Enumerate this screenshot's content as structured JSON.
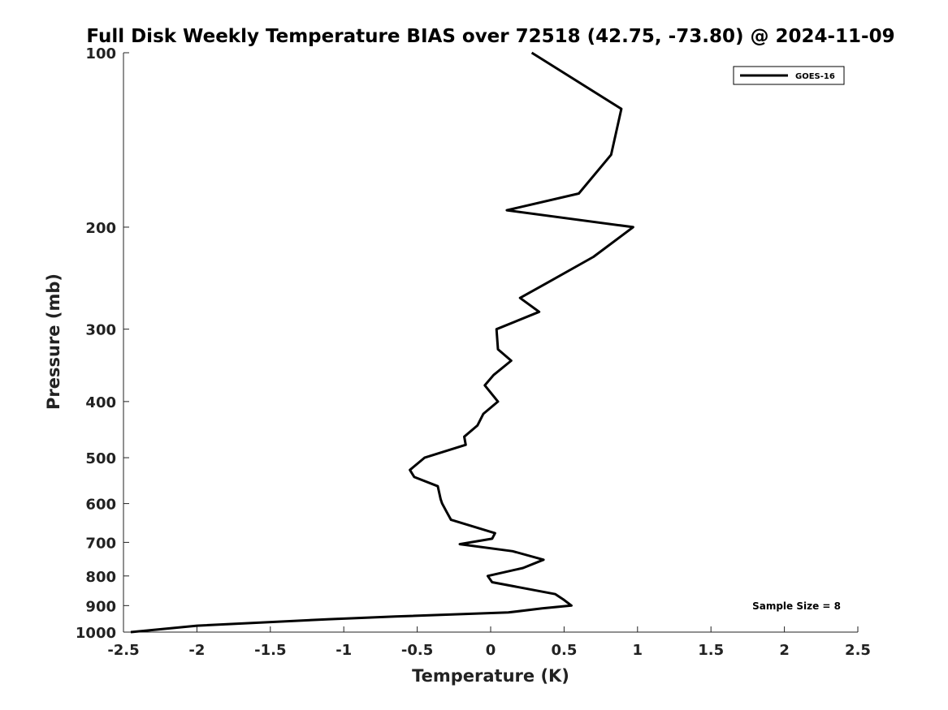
{
  "chart_data": {
    "type": "line",
    "title": "Full Disk Weekly Temperature BIAS over 72518 (42.75, -73.80) @ 2024-11-09",
    "xlabel": "Temperature (K)",
    "ylabel": "Pressure (mb)",
    "xlim": [
      -2.5,
      2.5
    ],
    "ylim": [
      1000,
      100
    ],
    "yscale": "log",
    "y_reversed": true,
    "grid": false,
    "legend_placement": "top-right",
    "x_ticks": [
      -2.5,
      -2,
      -1.5,
      -1,
      -0.5,
      0,
      0.5,
      1,
      1.5,
      2,
      2.5
    ],
    "x_tick_labels": [
      "-2.5",
      "-2",
      "-1.5",
      "-1",
      "-0.5",
      "0",
      "0.5",
      "1",
      "1.5",
      "2",
      "2.5"
    ],
    "y_ticks": [
      100,
      200,
      300,
      400,
      500,
      600,
      700,
      800,
      900,
      1000
    ],
    "y_tick_labels": [
      "100",
      "200",
      "300",
      "400",
      "500",
      "600",
      "700",
      "800",
      "900",
      "1000"
    ],
    "annotation": "Sample Size = 8",
    "series": [
      {
        "name": "GOES-16",
        "color": "#000000",
        "points": [
          {
            "x": 0.28,
            "p": 100
          },
          {
            "x": 0.89,
            "p": 125
          },
          {
            "x": 0.82,
            "p": 150
          },
          {
            "x": 0.6,
            "p": 175
          },
          {
            "x": 0.11,
            "p": 187
          },
          {
            "x": 0.97,
            "p": 200
          },
          {
            "x": 0.7,
            "p": 225
          },
          {
            "x": 0.38,
            "p": 250
          },
          {
            "x": 0.2,
            "p": 265
          },
          {
            "x": 0.33,
            "p": 280
          },
          {
            "x": 0.04,
            "p": 300
          },
          {
            "x": 0.05,
            "p": 325
          },
          {
            "x": 0.14,
            "p": 340
          },
          {
            "x": 0.02,
            "p": 360
          },
          {
            "x": -0.04,
            "p": 375
          },
          {
            "x": 0.05,
            "p": 400
          },
          {
            "x": -0.05,
            "p": 420
          },
          {
            "x": -0.09,
            "p": 440
          },
          {
            "x": -0.18,
            "p": 460
          },
          {
            "x": -0.17,
            "p": 475
          },
          {
            "x": -0.45,
            "p": 500
          },
          {
            "x": -0.55,
            "p": 525
          },
          {
            "x": -0.52,
            "p": 540
          },
          {
            "x": -0.36,
            "p": 560
          },
          {
            "x": -0.34,
            "p": 590
          },
          {
            "x": -0.33,
            "p": 600
          },
          {
            "x": -0.3,
            "p": 620
          },
          {
            "x": -0.27,
            "p": 640
          },
          {
            "x": 0.03,
            "p": 675
          },
          {
            "x": 0.01,
            "p": 690
          },
          {
            "x": -0.21,
            "p": 705
          },
          {
            "x": 0.15,
            "p": 725
          },
          {
            "x": 0.36,
            "p": 750
          },
          {
            "x": 0.22,
            "p": 775
          },
          {
            "x": -0.02,
            "p": 800
          },
          {
            "x": 0.01,
            "p": 820
          },
          {
            "x": 0.44,
            "p": 860
          },
          {
            "x": 0.5,
            "p": 880
          },
          {
            "x": 0.55,
            "p": 900
          },
          {
            "x": 0.35,
            "p": 910
          },
          {
            "x": 0.12,
            "p": 925
          },
          {
            "x": -0.65,
            "p": 940
          },
          {
            "x": -1.1,
            "p": 950
          },
          {
            "x": -2.0,
            "p": 975
          },
          {
            "x": -2.45,
            "p": 1000
          }
        ]
      }
    ]
  }
}
